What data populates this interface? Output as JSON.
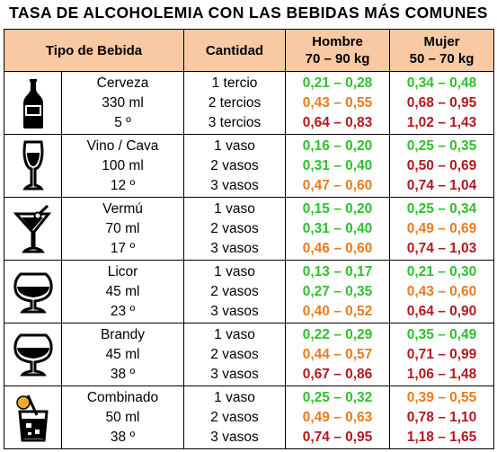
{
  "title": "TASA DE ALCOHOLEMIA CON LAS BEBIDAS MÁS COMUNES",
  "header": {
    "tipo": "Tipo de Bebida",
    "cantidad": "Cantidad",
    "hombre_l1": "Hombre",
    "hombre_l2": "70 – 90 kg",
    "mujer_l1": "Mujer",
    "mujer_l2": "50 – 70 kg"
  },
  "colors": {
    "green": "#2fc12b",
    "orange": "#ed7a1d",
    "red": "#b0191e",
    "header_bg": "#f9c9a4"
  },
  "drinks": [
    {
      "icon": "beer-bottle-icon",
      "name": "Cerveza",
      "volume": "330 ml",
      "degree": "5 º",
      "rows": [
        {
          "qty": "1 tercio",
          "men": "0,21 – 0,28",
          "men_level": "green",
          "women": "0,34 – 0,48",
          "women_level": "green"
        },
        {
          "qty": "2 tercios",
          "men": "0,43 – 0,55",
          "men_level": "orange",
          "women": "0,68 – 0,95",
          "women_level": "red"
        },
        {
          "qty": "3 tercios",
          "men": "0,64 – 0,83",
          "men_level": "red",
          "women": "1,02 – 1,43",
          "women_level": "red"
        }
      ]
    },
    {
      "icon": "champagne-glass-icon",
      "name": "Vino / Cava",
      "volume": "100 ml",
      "degree": "12 º",
      "rows": [
        {
          "qty": "1 vaso",
          "men": "0,16 – 0,20",
          "men_level": "green",
          "women": "0,25 – 0,35",
          "women_level": "green"
        },
        {
          "qty": "2 vasos",
          "men": "0,31 – 0,40",
          "men_level": "green",
          "women": "0,50 – 0,69",
          "women_level": "red"
        },
        {
          "qty": "3 vasos",
          "men": "0,47 – 0,60",
          "men_level": "orange",
          "women": "0,74 – 1,04",
          "women_level": "red"
        }
      ]
    },
    {
      "icon": "cocktail-glass-icon",
      "name": "Vermú",
      "volume": "70 ml",
      "degree": "17 º",
      "rows": [
        {
          "qty": "1 vaso",
          "men": "0,15 – 0,20",
          "men_level": "green",
          "women": "0,25 – 0,34",
          "women_level": "green"
        },
        {
          "qty": "2 vasos",
          "men": "0,31 – 0,40",
          "men_level": "green",
          "women": "0,49 – 0,69",
          "women_level": "orange"
        },
        {
          "qty": "3 vasos",
          "men": "0,46 – 0,60",
          "men_level": "orange",
          "women": "0,74 – 1,03",
          "women_level": "red"
        }
      ]
    },
    {
      "icon": "snifter-glass-icon",
      "name": "Licor",
      "volume": "45 ml",
      "degree": "23 º",
      "rows": [
        {
          "qty": "1 vaso",
          "men": "0,13 – 0,17",
          "men_level": "green",
          "women": "0,21 – 0,30",
          "women_level": "green"
        },
        {
          "qty": "2 vasos",
          "men": "0,27 – 0,35",
          "men_level": "green",
          "women": "0,43 – 0,60",
          "women_level": "orange"
        },
        {
          "qty": "3 vasos",
          "men": "0,40 – 0,52",
          "men_level": "orange",
          "women": "0,64 – 0,90",
          "women_level": "red"
        }
      ]
    },
    {
      "icon": "brandy-glass-icon",
      "name": "Brandy",
      "volume": "45 ml",
      "degree": "38 º",
      "rows": [
        {
          "qty": "1 vaso",
          "men": "0,22 – 0,29",
          "men_level": "green",
          "women": "0,35 – 0,49",
          "women_level": "green"
        },
        {
          "qty": "2 vasos",
          "men": "0,44 – 0,57",
          "men_level": "orange",
          "women": "0,71 – 0,99",
          "women_level": "red"
        },
        {
          "qty": "3 vasos",
          "men": "0,67 – 0,86",
          "men_level": "red",
          "women": "1,06 – 1,48",
          "women_level": "red"
        }
      ]
    },
    {
      "icon": "mixed-drink-icon",
      "name": "Combinado",
      "volume": "50 ml",
      "degree": "38 º",
      "rows": [
        {
          "qty": "1 vaso",
          "men": "0,25 – 0,32",
          "men_level": "green",
          "women": "0,39 – 0,55",
          "women_level": "orange"
        },
        {
          "qty": "2 vasos",
          "men": "0,49 – 0,63",
          "men_level": "orange",
          "women": "0,78 – 1,10",
          "women_level": "red"
        },
        {
          "qty": "3 vasos",
          "men": "0,74 – 0,95",
          "men_level": "red",
          "women": "1,18 – 1,65",
          "women_level": "red"
        }
      ]
    }
  ]
}
